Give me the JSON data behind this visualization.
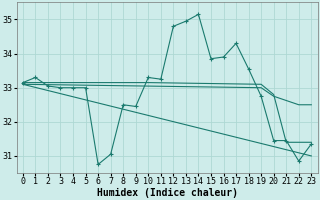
{
  "title": "",
  "xlabel": "Humidex (Indice chaleur)",
  "xlim": [
    -0.5,
    23.5
  ],
  "ylim": [
    30.5,
    35.5
  ],
  "yticks": [
    31,
    32,
    33,
    34,
    35
  ],
  "xticks": [
    0,
    1,
    2,
    3,
    4,
    5,
    6,
    7,
    8,
    9,
    10,
    11,
    12,
    13,
    14,
    15,
    16,
    17,
    18,
    19,
    20,
    21,
    22,
    23
  ],
  "background_color": "#ceecea",
  "grid_color": "#aed8d4",
  "line_color": "#1a7a6e",
  "lines": [
    {
      "x": [
        0,
        1,
        2,
        3,
        4,
        5,
        6,
        7,
        8,
        9,
        10,
        11,
        12,
        13,
        14,
        15,
        16,
        17,
        18,
        19,
        20,
        21,
        22,
        23
      ],
      "y": [
        33.15,
        33.3,
        33.05,
        33.0,
        33.0,
        33.0,
        30.75,
        31.05,
        32.5,
        32.45,
        33.3,
        33.25,
        34.8,
        34.95,
        35.15,
        33.85,
        33.9,
        34.3,
        33.55,
        32.75,
        31.45,
        31.45,
        30.85,
        31.35
      ],
      "marker": "+"
    },
    {
      "x": [
        0,
        10,
        19,
        20,
        21,
        22,
        23
      ],
      "y": [
        33.15,
        33.15,
        33.1,
        32.8,
        31.4,
        31.4,
        31.4
      ],
      "marker": null
    },
    {
      "x": [
        0,
        19,
        20,
        22,
        23
      ],
      "y": [
        33.1,
        33.0,
        32.75,
        32.5,
        32.5
      ],
      "marker": null
    },
    {
      "x": [
        0,
        23
      ],
      "y": [
        33.1,
        31.0
      ],
      "marker": null
    }
  ]
}
